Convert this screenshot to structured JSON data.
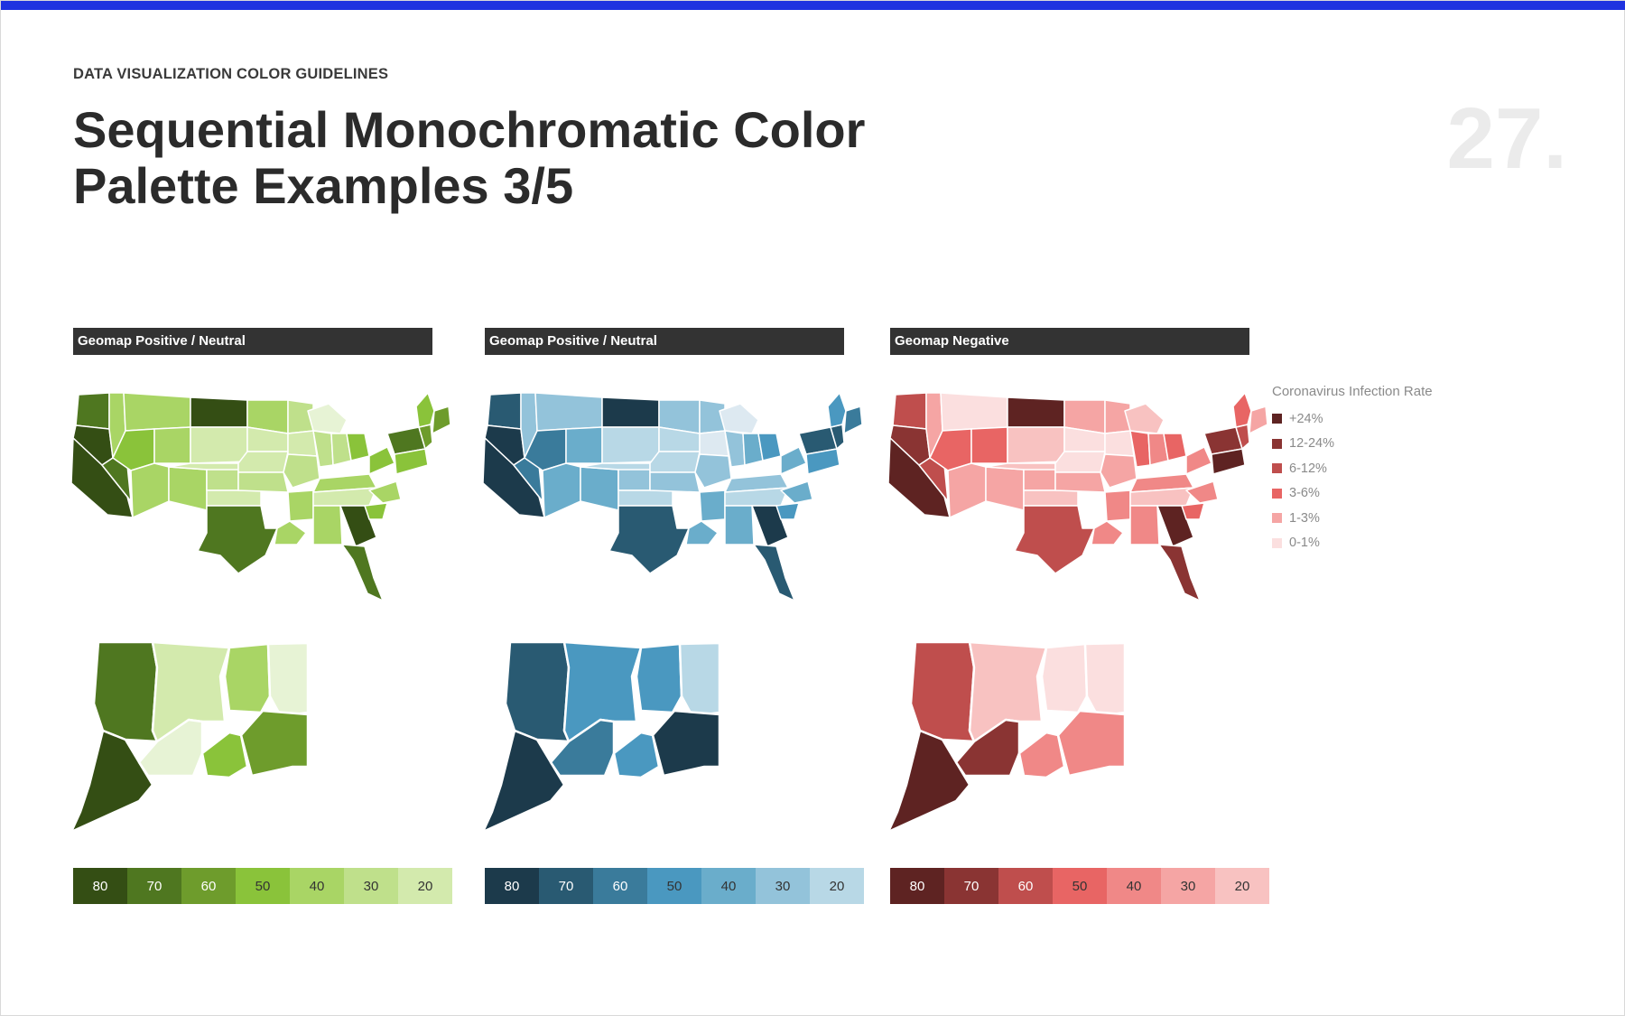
{
  "header": {
    "kicker": "DATA VISUALIZATION COLOR GUIDELINES",
    "title_line1": "Sequential Monochromatic Color",
    "title_line2": "Palette Examples 3/5",
    "page_number": "27."
  },
  "panels": [
    {
      "title": "Geomap Positive / Neutral",
      "palette": [
        "#344e14",
        "#4f7720",
        "#6e9c2c",
        "#8ac33a",
        "#a9d565",
        "#bfe08b",
        "#d3eaad",
        "#e7f3d5"
      ],
      "scale_values": [
        "80",
        "70",
        "60",
        "50",
        "40",
        "30",
        "20"
      ],
      "scale_text_colors": [
        "#ffffff",
        "#ffffff",
        "#ffffff",
        "#333333",
        "#333333",
        "#333333",
        "#333333"
      ]
    },
    {
      "title": "Geomap Positive / Neutral",
      "palette": [
        "#1c3a4b",
        "#295a72",
        "#3a7b9b",
        "#4a98c0",
        "#6aadcb",
        "#93c3da",
        "#b8d8e6",
        "#dde9f1"
      ],
      "scale_values": [
        "80",
        "70",
        "60",
        "50",
        "40",
        "30",
        "20"
      ],
      "scale_text_colors": [
        "#ffffff",
        "#ffffff",
        "#ffffff",
        "#333333",
        "#333333",
        "#333333",
        "#333333"
      ]
    },
    {
      "title": "Geomap Negative",
      "palette": [
        "#5e2322",
        "#8a3433",
        "#bf4e4d",
        "#e86564",
        "#f08887",
        "#f5a5a4",
        "#f8c2c1",
        "#fbdfdf"
      ],
      "scale_values": [
        "80",
        "70",
        "60",
        "50",
        "40",
        "30",
        "20"
      ],
      "scale_text_colors": [
        "#ffffff",
        "#ffffff",
        "#ffffff",
        "#333333",
        "#333333",
        "#333333",
        "#333333"
      ]
    }
  ],
  "legend": {
    "title": "Coronavirus Infection Rate",
    "items": [
      {
        "label": "+24%",
        "color": "#5e2322"
      },
      {
        "label": "12-24%",
        "color": "#8a3433"
      },
      {
        "label": "6-12%",
        "color": "#bf4e4d"
      },
      {
        "label": "3-6%",
        "color": "#e86564"
      },
      {
        "label": "1-3%",
        "color": "#f5a5a4"
      },
      {
        "label": "0-1%",
        "color": "#fbdfdf"
      }
    ]
  }
}
